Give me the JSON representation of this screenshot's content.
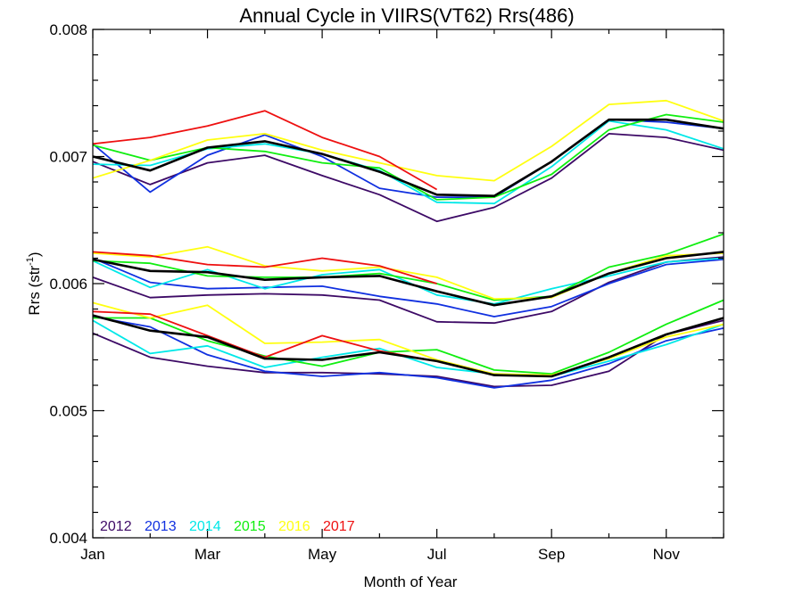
{
  "chart_data": {
    "type": "line",
    "title": "Annual Cycle in VIIRS(VT62) Rrs(486)",
    "xlabel": "Month of Year",
    "ylabel_main": "Rrs (str",
    "ylabel_sup": "-1",
    "ylabel_close": ")",
    "xlim": [
      1,
      12
    ],
    "ylim": [
      0.004,
      0.008
    ],
    "x_ticks": [
      {
        "value": 1,
        "label": "Jan"
      },
      {
        "value": 3,
        "label": "Mar"
      },
      {
        "value": 5,
        "label": "May"
      },
      {
        "value": 7,
        "label": "Jul"
      },
      {
        "value": 9,
        "label": "Sep"
      },
      {
        "value": 11,
        "label": "Nov"
      }
    ],
    "y_ticks": [
      {
        "value": 0.004,
        "label": "0.004"
      },
      {
        "value": 0.005,
        "label": "0.005"
      },
      {
        "value": 0.006,
        "label": "0.006"
      },
      {
        "value": 0.007,
        "label": "0.007"
      },
      {
        "value": 0.008,
        "label": "0.008"
      }
    ],
    "x": [
      1,
      2,
      3,
      4,
      5,
      6,
      7,
      8,
      9,
      10,
      11,
      12
    ],
    "legend_position": "bottom-left",
    "series": [
      {
        "name": "2012",
        "color": "#3d0a66",
        "groups": [
          [
            0.00696,
            0.00678,
            0.00695,
            0.00701,
            0.00685,
            0.0067,
            0.00649,
            0.0066,
            0.00683,
            0.00718,
            0.00715,
            0.00705
          ],
          [
            0.00605,
            0.00589,
            0.00591,
            0.00592,
            0.00591,
            0.00587,
            0.0057,
            0.00569,
            0.00578,
            0.00601,
            0.00617,
            0.00621
          ],
          [
            0.00561,
            0.00542,
            0.00535,
            0.0053,
            0.0053,
            0.00529,
            0.00527,
            0.00519,
            0.0052,
            0.00531,
            0.0056,
            0.00571
          ]
        ]
      },
      {
        "name": "2013",
        "color": "#1030e0",
        "groups": [
          [
            0.0071,
            0.00672,
            0.00701,
            0.00717,
            0.007,
            0.00675,
            0.00668,
            0.00668,
            0.00696,
            0.00729,
            0.00727,
            0.00722
          ],
          [
            0.0062,
            0.00601,
            0.00596,
            0.00597,
            0.00598,
            0.0059,
            0.00584,
            0.00574,
            0.00582,
            0.006,
            0.00615,
            0.00619
          ],
          [
            0.00574,
            0.00566,
            0.00544,
            0.00531,
            0.00527,
            0.0053,
            0.00526,
            0.00518,
            0.00524,
            0.00537,
            0.00555,
            0.00565
          ]
        ]
      },
      {
        "name": "2014",
        "color": "#00e8e8",
        "groups": [
          [
            0.00694,
            0.00693,
            0.00706,
            0.0071,
            0.00702,
            0.00689,
            0.00664,
            0.00663,
            0.00692,
            0.00728,
            0.00721,
            0.00706
          ],
          [
            0.00618,
            0.00597,
            0.00611,
            0.00596,
            0.00607,
            0.00611,
            0.00591,
            0.00584,
            0.00596,
            0.00606,
            0.00617,
            0.0062
          ],
          [
            0.00571,
            0.00545,
            0.00551,
            0.00534,
            0.00542,
            0.00549,
            0.00534,
            0.00529,
            0.00527,
            0.00539,
            0.00552,
            0.00568
          ]
        ]
      },
      {
        "name": "2015",
        "color": "#10ee10",
        "groups": [
          [
            0.00709,
            0.00697,
            0.00707,
            0.00704,
            0.00695,
            0.00691,
            0.00666,
            0.00668,
            0.00686,
            0.00721,
            0.00733,
            0.00727
          ],
          [
            0.00618,
            0.00616,
            0.00606,
            0.00605,
            0.00605,
            0.00608,
            0.006,
            0.00587,
            0.0059,
            0.00613,
            0.00623,
            0.00639
          ],
          [
            0.00573,
            0.00573,
            0.00555,
            0.00543,
            0.00535,
            0.00546,
            0.00548,
            0.00532,
            0.00529,
            0.00546,
            0.00568,
            0.00587
          ]
        ]
      },
      {
        "name": "2016",
        "color": "#ffff10",
        "groups": [
          [
            0.00683,
            0.00697,
            0.00713,
            0.00718,
            0.00705,
            0.00695,
            0.00685,
            0.00681,
            0.00708,
            0.00741,
            0.00744,
            0.00728
          ],
          [
            0.00624,
            0.00621,
            0.00629,
            0.00614,
            0.0061,
            0.00613,
            0.00605,
            0.00588,
            0.00589,
            0.00608,
            0.00622,
            0.00624
          ],
          [
            0.00585,
            0.00573,
            0.00583,
            0.00553,
            0.00554,
            0.00556,
            0.0054,
            0.00529,
            0.00528,
            0.00541,
            0.00558,
            0.00568
          ]
        ]
      },
      {
        "name": "2017",
        "color": "#ee1010",
        "groups": [
          [
            0.0071,
            0.00715,
            0.00724,
            0.00736,
            0.00715,
            0.007,
            0.00674
          ],
          [
            0.00625,
            0.00622,
            0.00615,
            0.00613,
            0.0062,
            0.00614,
            0.006
          ],
          [
            0.00578,
            0.00576,
            0.00559,
            0.00542,
            0.00559,
            0.00547,
            0.00539
          ]
        ]
      },
      {
        "name": "",
        "color": "#000000",
        "legend": false,
        "width": 2.6,
        "groups": [
          [
            0.007,
            0.00689,
            0.00707,
            0.00712,
            0.00702,
            0.00688,
            0.0067,
            0.00669,
            0.00696,
            0.00729,
            0.00729,
            0.00722
          ],
          [
            0.00619,
            0.0061,
            0.00609,
            0.00603,
            0.00605,
            0.00606,
            0.00594,
            0.00583,
            0.0059,
            0.00608,
            0.0062,
            0.00625
          ],
          [
            0.00575,
            0.00563,
            0.00558,
            0.00541,
            0.0054,
            0.00546,
            0.00539,
            0.00528,
            0.00527,
            0.00542,
            0.0056,
            0.00573
          ]
        ]
      }
    ]
  }
}
